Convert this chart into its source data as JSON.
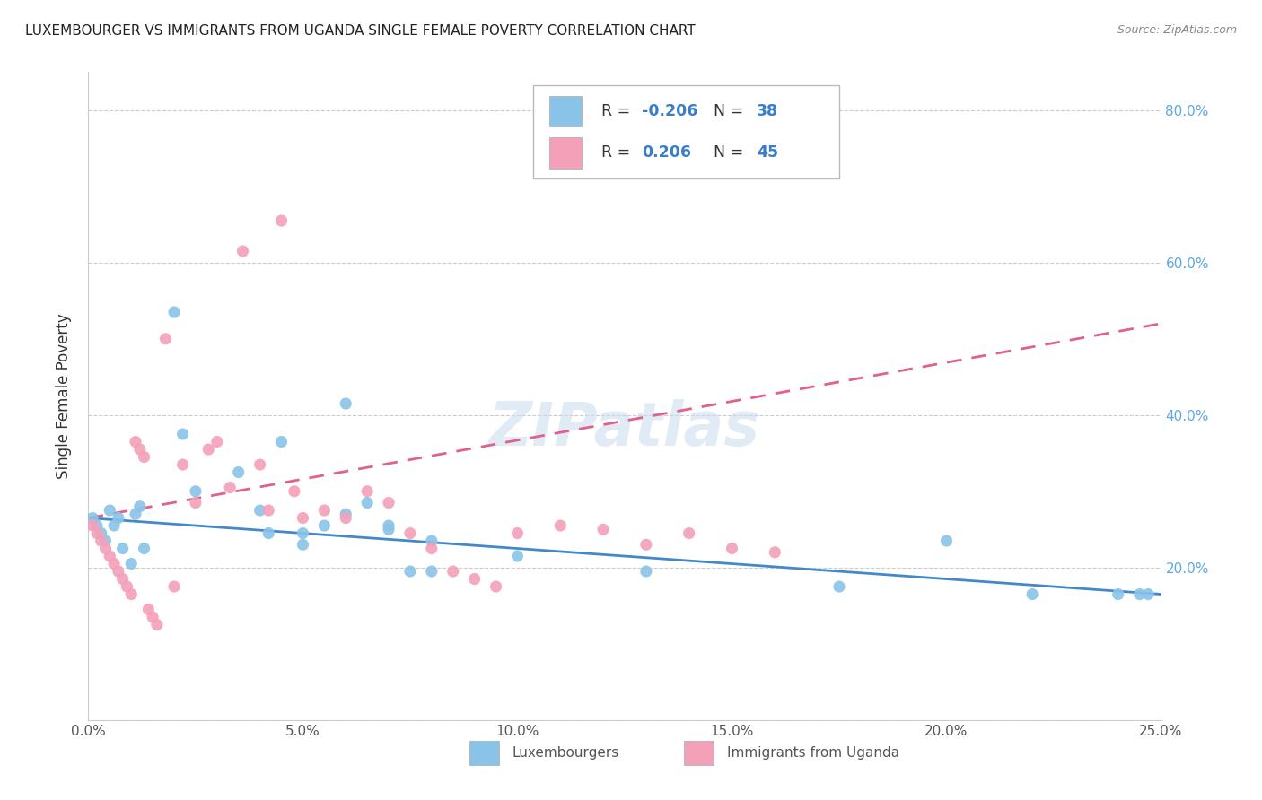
{
  "title": "LUXEMBOURGER VS IMMIGRANTS FROM UGANDA SINGLE FEMALE POVERTY CORRELATION CHART",
  "source": "Source: ZipAtlas.com",
  "ylabel": "Single Female Poverty",
  "xlim": [
    0.0,
    0.25
  ],
  "ylim": [
    0.0,
    0.85
  ],
  "blue_color": "#89C4E8",
  "pink_color": "#F4A0B8",
  "blue_line_color": "#4488CC",
  "pink_line_color": "#E06090",
  "legend_r_blue": "-0.206",
  "legend_n_blue": "38",
  "legend_r_pink": "0.206",
  "legend_n_pink": "45",
  "watermark": "ZIPatlas",
  "blue_points_x": [
    0.001,
    0.002,
    0.003,
    0.004,
    0.005,
    0.006,
    0.007,
    0.008,
    0.01,
    0.011,
    0.012,
    0.013,
    0.02,
    0.022,
    0.025,
    0.035,
    0.04,
    0.042,
    0.045,
    0.05,
    0.06,
    0.065,
    0.07,
    0.075,
    0.08,
    0.1,
    0.13,
    0.175,
    0.2,
    0.22,
    0.24,
    0.245,
    0.247,
    0.05,
    0.055,
    0.06,
    0.07,
    0.08
  ],
  "blue_points_y": [
    0.265,
    0.255,
    0.245,
    0.235,
    0.275,
    0.255,
    0.265,
    0.225,
    0.205,
    0.27,
    0.28,
    0.225,
    0.535,
    0.375,
    0.3,
    0.325,
    0.275,
    0.245,
    0.365,
    0.245,
    0.415,
    0.285,
    0.255,
    0.195,
    0.195,
    0.215,
    0.195,
    0.175,
    0.235,
    0.165,
    0.165,
    0.165,
    0.165,
    0.23,
    0.255,
    0.27,
    0.25,
    0.235
  ],
  "pink_points_x": [
    0.001,
    0.002,
    0.003,
    0.004,
    0.005,
    0.006,
    0.007,
    0.008,
    0.009,
    0.01,
    0.011,
    0.012,
    0.013,
    0.014,
    0.015,
    0.016,
    0.018,
    0.02,
    0.022,
    0.025,
    0.028,
    0.03,
    0.033,
    0.036,
    0.04,
    0.042,
    0.045,
    0.048,
    0.05,
    0.055,
    0.06,
    0.065,
    0.07,
    0.075,
    0.08,
    0.085,
    0.09,
    0.095,
    0.1,
    0.11,
    0.12,
    0.13,
    0.14,
    0.15,
    0.16
  ],
  "pink_points_y": [
    0.255,
    0.245,
    0.235,
    0.225,
    0.215,
    0.205,
    0.195,
    0.185,
    0.175,
    0.165,
    0.365,
    0.355,
    0.345,
    0.145,
    0.135,
    0.125,
    0.5,
    0.175,
    0.335,
    0.285,
    0.355,
    0.365,
    0.305,
    0.615,
    0.335,
    0.275,
    0.655,
    0.3,
    0.265,
    0.275,
    0.265,
    0.3,
    0.285,
    0.245,
    0.225,
    0.195,
    0.185,
    0.175,
    0.245,
    0.255,
    0.25,
    0.23,
    0.245,
    0.225,
    0.22
  ]
}
